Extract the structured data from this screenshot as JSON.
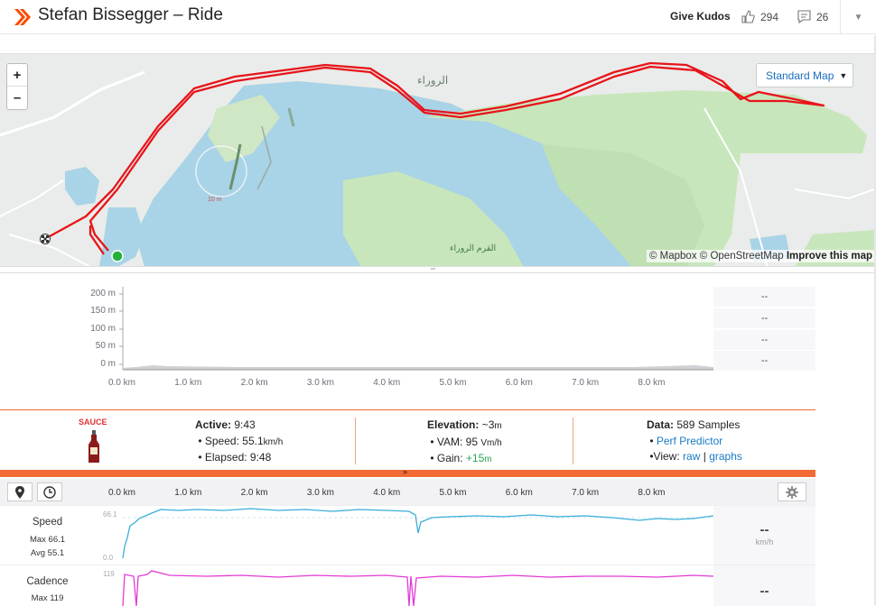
{
  "header": {
    "title": "Stefan Bissegger – Ride",
    "give_kudos": "Give Kudos",
    "kudos_count": "294",
    "comment_count": "26"
  },
  "map": {
    "zoom_in": "+",
    "zoom_out": "–",
    "style_select": "Standard Map",
    "label_rawra": "الروراء",
    "label_qarm": "القرم الروراء",
    "label_small": "10 m",
    "attribution_mapbox": "© Mapbox",
    "attribution_osm": "© OpenStreetMap",
    "attribution_improve": "Improve this map"
  },
  "elevation_chart": {
    "y_ticks": [
      "200 m",
      "150 m",
      "100 m",
      "50 m",
      "0 m"
    ],
    "x_ticks": [
      "0.0 km",
      "1.0 km",
      "2.0 km",
      "3.0 km",
      "4.0 km",
      "5.0 km",
      "6.0 km",
      "7.0 km",
      "8.0 km"
    ],
    "side_values": [
      "--",
      "--",
      "--",
      "--"
    ]
  },
  "sauce": {
    "logo_text": "SAUCE",
    "active_label": "Active:",
    "active_value": "9:43",
    "speed_label": "Speed:",
    "speed_value": "55.1",
    "speed_unit": "km/h",
    "elapsed_label": "Elapsed:",
    "elapsed_value": "9:48",
    "elevation_label": "Elevation:",
    "elevation_value": "~3",
    "elevation_unit": "m",
    "vam_label": "VAM:",
    "vam_value": "95",
    "vam_unit": "Vm/h",
    "gain_label": "Gain:",
    "gain_value": "+15",
    "gain_unit": "m",
    "data_label": "Data:",
    "data_value": "589 Samples",
    "perf_predictor": "Perf Predictor",
    "view_label": "View:",
    "view_raw": "raw",
    "view_sep": "|",
    "view_graphs": "graphs"
  },
  "analysis": {
    "km_ticks": [
      "0.0 km",
      "1.0 km",
      "2.0 km",
      "3.0 km",
      "4.0 km",
      "5.0 km",
      "6.0 km",
      "7.0 km",
      "8.0 km"
    ],
    "speed": {
      "name": "Speed",
      "max": "Max 66.1",
      "avg": "Avg 55.1",
      "axis_max": "66.1",
      "axis_min": "0.0",
      "value": "--",
      "unit": "km/h"
    },
    "cadence": {
      "name": "Cadence",
      "max": "Max 119",
      "axis_max": "119",
      "value": "--"
    }
  },
  "colors": {
    "strava_orange": "#fc4c02",
    "sauce_orange": "#f26b35",
    "route": "#e8141a",
    "speed_line": "#3aaed8",
    "cadence_line": "#e23ad6"
  }
}
